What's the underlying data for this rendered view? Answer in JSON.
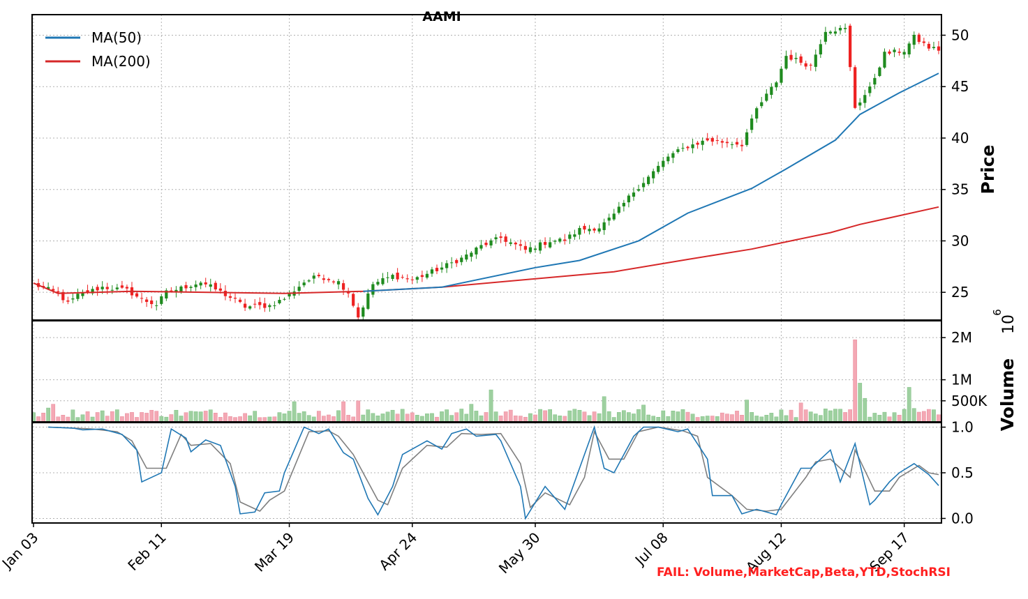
{
  "chart_data": [
    {
      "panel": "price",
      "type": "candlestick",
      "title": "AAMI",
      "ylabel": "Price",
      "ylim": [
        22.3,
        52.0
      ],
      "yticks": [
        25,
        30,
        35,
        40,
        45,
        50
      ],
      "grid": true,
      "legend_position": "top-left",
      "legend": [
        "MA(50)",
        "MA(200)"
      ],
      "x_start": "2024-01-03",
      "x_end": "2024-09-26",
      "xtick_labels": [
        "Jan 03",
        "Feb 11",
        "Mar 19",
        "Apr 24",
        "May 30",
        "Jul 08",
        "Aug 12",
        "Sep 17"
      ],
      "close_anchors": [
        [
          "2024-01-03",
          25.8
        ],
        [
          "2024-01-10",
          24.9
        ],
        [
          "2024-01-12",
          23.9
        ],
        [
          "2024-01-17",
          24.7
        ],
        [
          "2024-01-24",
          25.5
        ],
        [
          "2024-01-31",
          25.2
        ],
        [
          "2024-02-05",
          24.3
        ],
        [
          "2024-02-08",
          23.8
        ],
        [
          "2024-02-12",
          25.0
        ],
        [
          "2024-02-15",
          25.4
        ],
        [
          "2024-02-22",
          26.0
        ],
        [
          "2024-02-27",
          25.3
        ],
        [
          "2024-03-01",
          24.5
        ],
        [
          "2024-03-06",
          23.6
        ],
        [
          "2024-03-13",
          23.7
        ],
        [
          "2024-03-18",
          24.4
        ],
        [
          "2024-03-22",
          26.0
        ],
        [
          "2024-03-27",
          26.6
        ],
        [
          "2024-04-03",
          26.0
        ],
        [
          "2024-04-05",
          25.0
        ],
        [
          "2024-04-09",
          22.6
        ],
        [
          "2024-04-12",
          25.8
        ],
        [
          "2024-04-18",
          26.6
        ],
        [
          "2024-04-24",
          26.2
        ],
        [
          "2024-05-02",
          27.4
        ],
        [
          "2024-05-08",
          28.3
        ],
        [
          "2024-05-14",
          29.5
        ],
        [
          "2024-05-20",
          30.3
        ],
        [
          "2024-05-28",
          29.1
        ],
        [
          "2024-06-04",
          30.0
        ],
        [
          "2024-06-07",
          30.1
        ],
        [
          "2024-06-12",
          31.1
        ],
        [
          "2024-06-18",
          31.3
        ],
        [
          "2024-06-24",
          32.5
        ],
        [
          "2024-06-28",
          34.8
        ],
        [
          "2024-07-05",
          36.7
        ],
        [
          "2024-07-10",
          38.2
        ],
        [
          "2024-07-16",
          39.2
        ],
        [
          "2024-07-22",
          39.8
        ],
        [
          "2024-07-31",
          39.4
        ],
        [
          "2024-08-05",
          42.8
        ],
        [
          "2024-08-09",
          45.5
        ],
        [
          "2024-08-13",
          48.0
        ],
        [
          "2024-08-20",
          47.0
        ],
        [
          "2024-08-23",
          50.5
        ],
        [
          "2024-08-29",
          50.6
        ],
        [
          "2024-09-03",
          43.0
        ],
        [
          "2024-09-06",
          44.8
        ],
        [
          "2024-09-11",
          48.2
        ],
        [
          "2024-09-17",
          48.5
        ],
        [
          "2024-09-19",
          49.8
        ],
        [
          "2024-09-24",
          48.8
        ],
        [
          "2024-09-26",
          48.6
        ]
      ],
      "ma50_anchors": [
        [
          "2024-04-10",
          25.1
        ],
        [
          "2024-05-02",
          25.5
        ],
        [
          "2024-05-30",
          27.4
        ],
        [
          "2024-06-12",
          28.1
        ],
        [
          "2024-07-01",
          30.0
        ],
        [
          "2024-07-16",
          32.7
        ],
        [
          "2024-08-02",
          35.1
        ],
        [
          "2024-08-13",
          37.0
        ],
        [
          "2024-08-27",
          39.8
        ],
        [
          "2024-09-04",
          42.3
        ],
        [
          "2024-09-16",
          44.4
        ],
        [
          "2024-09-26",
          46.3
        ]
      ],
      "ma200_anchors": [
        [
          "2024-01-03",
          25.9
        ],
        [
          "2024-01-10",
          24.9
        ],
        [
          "2024-02-01",
          25.1
        ],
        [
          "2024-03-18",
          24.9
        ],
        [
          "2024-04-10",
          25.1
        ],
        [
          "2024-05-02",
          25.5
        ],
        [
          "2024-06-24",
          27.0
        ],
        [
          "2024-07-16",
          28.2
        ],
        [
          "2024-08-02",
          29.2
        ],
        [
          "2024-08-26",
          30.8
        ],
        [
          "2024-09-04",
          31.6
        ],
        [
          "2024-09-26",
          33.3
        ]
      ]
    },
    {
      "panel": "volume",
      "type": "bar",
      "ylabel": "Volume",
      "scale_label": "10",
      "scale_exponent": "6",
      "ylim": [
        0,
        2.4
      ],
      "ytick_values": [
        0.5,
        1.0,
        2.0
      ],
      "ytick_labels": [
        "500K",
        "1M",
        "2M"
      ],
      "baseline_millions": 0.23,
      "spikes": [
        [
          "2024-01-09",
          0.42
        ],
        [
          "2024-01-08",
          0.33
        ],
        [
          "2024-03-20",
          0.48
        ],
        [
          "2024-04-04",
          0.48
        ],
        [
          "2024-04-09",
          0.5
        ],
        [
          "2024-05-10",
          0.42
        ],
        [
          "2024-05-16",
          0.76
        ],
        [
          "2024-06-20",
          0.6
        ],
        [
          "2024-07-02",
          0.4
        ],
        [
          "2024-08-01",
          0.52
        ],
        [
          "2024-08-16",
          0.45
        ],
        [
          "2024-09-03",
          1.95
        ],
        [
          "2024-09-04",
          0.92
        ],
        [
          "2024-09-05",
          0.56
        ],
        [
          "2024-09-18",
          0.82
        ],
        [
          "2024-09-19",
          0.32
        ]
      ]
    },
    {
      "panel": "stochastic",
      "type": "line",
      "ylim": [
        -0.05,
        1.05
      ],
      "yticks": [
        0.0,
        0.5,
        1.0
      ],
      "ytick_labels": [
        "0.0",
        "0.5",
        "1.0"
      ],
      "series": [
        {
          "color": "#1f77b4",
          "points": [
            [
              "2024-01-08",
              1.0
            ],
            [
              "2024-01-15",
              0.99
            ],
            [
              "2024-01-18",
              0.97
            ],
            [
              "2024-01-24",
              0.98
            ],
            [
              "2024-01-30",
              0.92
            ],
            [
              "2024-02-02",
              0.75
            ],
            [
              "2024-02-05",
              0.4
            ],
            [
              "2024-02-09",
              0.5
            ],
            [
              "2024-02-13",
              0.98
            ],
            [
              "2024-02-16",
              0.88
            ],
            [
              "2024-02-20",
              0.73
            ],
            [
              "2024-02-23",
              0.86
            ],
            [
              "2024-02-28",
              0.8
            ],
            [
              "2024-03-02",
              0.35
            ],
            [
              "2024-03-05",
              0.05
            ],
            [
              "2024-03-08",
              0.07
            ],
            [
              "2024-03-12",
              0.28
            ],
            [
              "2024-03-15",
              0.3
            ],
            [
              "2024-03-18",
              0.5
            ],
            [
              "2024-03-22",
              1.0
            ],
            [
              "2024-03-27",
              0.93
            ],
            [
              "2024-04-01",
              0.98
            ],
            [
              "2024-04-04",
              0.72
            ],
            [
              "2024-04-07",
              0.65
            ],
            [
              "2024-04-11",
              0.22
            ],
            [
              "2024-04-15",
              0.04
            ],
            [
              "2024-04-18",
              0.35
            ],
            [
              "2024-04-22",
              0.7
            ],
            [
              "2024-04-28",
              0.85
            ],
            [
              "2024-05-02",
              0.76
            ],
            [
              "2024-05-06",
              0.93
            ],
            [
              "2024-05-09",
              0.98
            ],
            [
              "2024-05-13",
              0.9
            ],
            [
              "2024-05-17",
              0.92
            ],
            [
              "2024-05-20",
              0.85
            ],
            [
              "2024-05-24",
              0.35
            ],
            [
              "2024-05-28",
              0.0
            ],
            [
              "2024-06-02",
              0.35
            ],
            [
              "2024-06-07",
              0.1
            ],
            [
              "2024-06-12",
              0.55
            ],
            [
              "2024-06-15",
              1.0
            ],
            [
              "2024-06-20",
              0.55
            ],
            [
              "2024-06-24",
              0.5
            ],
            [
              "2024-06-28",
              0.9
            ],
            [
              "2024-07-02",
              1.0
            ],
            [
              "2024-07-08",
              1.0
            ],
            [
              "2024-07-12",
              0.95
            ],
            [
              "2024-07-16",
              0.98
            ],
            [
              "2024-07-20",
              0.65
            ],
            [
              "2024-07-23",
              0.25
            ],
            [
              "2024-07-27",
              0.25
            ],
            [
              "2024-07-31",
              0.05
            ],
            [
              "2024-08-05",
              0.1
            ],
            [
              "2024-08-09",
              0.04
            ],
            [
              "2024-08-12",
              0.15
            ],
            [
              "2024-08-16",
              0.55
            ],
            [
              "2024-08-20",
              0.55
            ],
            [
              "2024-08-24",
              0.75
            ],
            [
              "2024-08-28",
              0.4
            ],
            [
              "2024-09-01",
              0.82
            ],
            [
              "2024-09-03",
              0.82
            ],
            [
              "2024-09-06",
              0.15
            ],
            [
              "2024-09-09",
              0.2
            ],
            [
              "2024-09-12",
              0.4
            ],
            [
              "2024-09-16",
              0.5
            ],
            [
              "2024-09-19",
              0.6
            ],
            [
              "2024-09-22",
              0.52
            ],
            [
              "2024-09-24",
              0.48
            ],
            [
              "2024-09-26",
              0.36
            ]
          ]
        },
        {
          "color": "#7f7f7f",
          "points": [
            [
              "2024-01-08",
              1.0
            ],
            [
              "2024-01-15",
              0.99
            ],
            [
              "2024-01-20",
              0.98
            ],
            [
              "2024-01-28",
              0.95
            ],
            [
              "2024-02-01",
              0.85
            ],
            [
              "2024-02-06",
              0.55
            ],
            [
              "2024-02-10",
              0.55
            ],
            [
              "2024-02-15",
              0.92
            ],
            [
              "2024-02-20",
              0.8
            ],
            [
              "2024-02-25",
              0.82
            ],
            [
              "2024-03-01",
              0.6
            ],
            [
              "2024-03-05",
              0.18
            ],
            [
              "2024-03-09",
              0.08
            ],
            [
              "2024-03-13",
              0.2
            ],
            [
              "2024-03-18",
              0.3
            ],
            [
              "2024-03-24",
              0.95
            ],
            [
              "2024-03-29",
              0.96
            ],
            [
              "2024-04-03",
              0.9
            ],
            [
              "2024-04-08",
              0.7
            ],
            [
              "2024-04-13",
              0.2
            ],
            [
              "2024-04-17",
              0.15
            ],
            [
              "2024-04-22",
              0.55
            ],
            [
              "2024-04-28",
              0.8
            ],
            [
              "2024-05-03",
              0.78
            ],
            [
              "2024-05-08",
              0.93
            ],
            [
              "2024-05-14",
              0.92
            ],
            [
              "2024-05-20",
              0.93
            ],
            [
              "2024-05-24",
              0.6
            ],
            [
              "2024-05-29",
              0.12
            ],
            [
              "2024-06-03",
              0.28
            ],
            [
              "2024-06-08",
              0.15
            ],
            [
              "2024-06-13",
              0.45
            ],
            [
              "2024-06-17",
              0.95
            ],
            [
              "2024-06-21",
              0.65
            ],
            [
              "2024-06-26",
              0.65
            ],
            [
              "2024-06-30",
              0.95
            ],
            [
              "2024-07-06",
              1.0
            ],
            [
              "2024-07-13",
              0.96
            ],
            [
              "2024-07-18",
              0.9
            ],
            [
              "2024-07-22",
              0.45
            ],
            [
              "2024-07-27",
              0.25
            ],
            [
              "2024-08-01",
              0.1
            ],
            [
              "2024-08-07",
              0.08
            ],
            [
              "2024-08-12",
              0.1
            ],
            [
              "2024-08-17",
              0.45
            ],
            [
              "2024-08-21",
              0.62
            ],
            [
              "2024-08-26",
              0.65
            ],
            [
              "2024-08-30",
              0.45
            ],
            [
              "2024-09-03",
              0.75
            ],
            [
              "2024-09-07",
              0.3
            ],
            [
              "2024-09-12",
              0.3
            ],
            [
              "2024-09-16",
              0.45
            ],
            [
              "2024-09-20",
              0.58
            ],
            [
              "2024-09-24",
              0.5
            ],
            [
              "2024-09-26",
              0.48
            ]
          ]
        }
      ]
    }
  ],
  "footer": {
    "fail_message": "FAIL: Volume,MarketCap,Beta,YTD,StochRSI"
  }
}
